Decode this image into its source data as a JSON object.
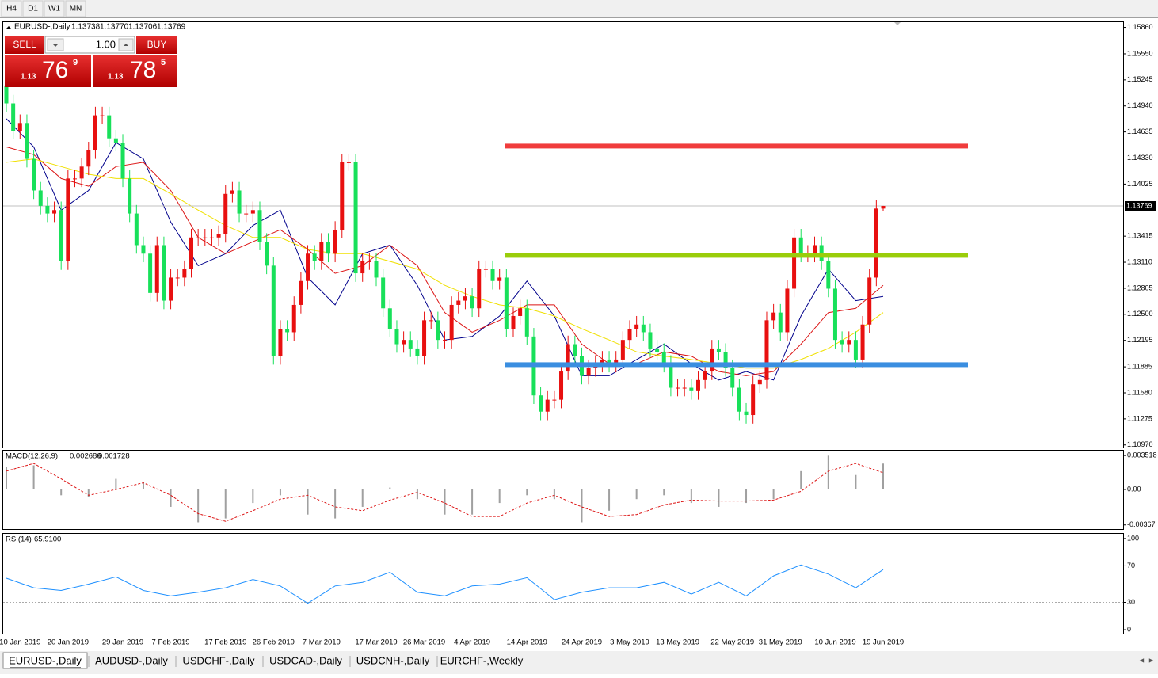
{
  "toolbar": {
    "buttons": [
      "H4",
      "D1",
      "W1",
      "MN"
    ]
  },
  "header": {
    "symbol": "EURUSD-,Daily",
    "ohlc": [
      "1.13738",
      "1.13770",
      "1.13706",
      "1.13769"
    ]
  },
  "trade_panel": {
    "sell": "SELL",
    "buy": "BUY",
    "lot": "1.00",
    "bid": {
      "prefix": "1.13",
      "big": "76",
      "sup": "9"
    },
    "ask": {
      "prefix": "1.13",
      "big": "78",
      "sup": "5"
    }
  },
  "chart_data": [
    {
      "type": "candlestick",
      "categories": [
        null,
        null,
        "10 Jan 2019",
        null,
        null,
        null,
        null,
        null,
        null,
        "20 Jan 2019",
        null,
        null,
        null,
        null,
        null,
        null,
        null,
        "29 Jan 2019",
        null,
        null,
        null,
        null,
        null,
        null,
        "7 Feb 2019",
        null,
        null,
        null,
        null,
        null,
        null,
        null,
        "17 Feb 2019",
        null,
        null,
        null,
        null,
        null,
        null,
        "26 Feb 2019",
        null,
        null,
        null,
        null,
        null,
        null,
        "7 Mar 2019",
        null,
        null,
        null,
        null,
        null,
        null,
        null,
        "17 Mar 2019",
        null,
        null,
        null,
        null,
        null,
        null,
        "26 Mar 2019",
        null,
        null,
        null,
        null,
        null,
        null,
        "4 Apr 2019",
        null,
        null,
        null,
        null,
        null,
        null,
        null,
        "14 Apr 2019",
        null,
        null,
        null,
        null,
        null,
        null,
        null,
        "24 Apr 2019",
        null,
        null,
        null,
        null,
        null,
        null,
        "3 May 2019",
        null,
        null,
        null,
        null,
        null,
        null,
        "13 May 2019",
        null,
        null,
        null,
        null,
        null,
        null,
        null,
        "22 May 2019",
        null,
        null,
        null,
        null,
        null,
        null,
        "31 May 2019",
        null,
        null,
        null,
        null,
        null,
        null,
        null,
        "10 Jun 2019",
        null,
        null,
        null,
        null,
        null,
        null,
        "19 Jun 2019"
      ],
      "open": [
        1.1518,
        1.1497,
        1.1465,
        1.1474,
        1.1432,
        1.1395,
        1.1377,
        1.1368,
        1.1372,
        1.1312,
        1.1409,
        1.1409,
        1.1423,
        1.1442,
        1.1483,
        1.1483,
        1.1456,
        1.1451,
        1.1409,
        1.1368,
        1.1331,
        1.1321,
        1.1275,
        1.1331,
        1.1266,
        1.1293,
        1.1293,
        1.1303,
        1.134,
        1.134,
        1.134,
        1.134,
        1.1344,
        1.1391,
        1.1395,
        1.1368,
        1.1368,
        1.1372,
        1.1335,
        1.1307,
        1.1201,
        1.1233,
        1.1229,
        1.1261,
        1.1289,
        1.1321,
        1.1312,
        1.1335,
        1.1321,
        1.1349,
        1.1428,
        1.1428,
        1.1298,
        1.1312,
        1.1312,
        1.1293,
        1.1257,
        1.1233,
        1.1215,
        1.122,
        1.121,
        1.1201,
        1.1243,
        1.1243,
        1.122,
        1.122,
        1.1261,
        1.1266,
        1.1271,
        1.1257,
        1.1303,
        1.1303,
        1.1289,
        1.1293,
        1.1233,
        1.1248,
        1.1257,
        1.1224,
        1.1155,
        1.1136,
        1.115,
        1.115,
        1.1183,
        1.1215,
        1.1201,
        1.1178,
        1.1187,
        1.1192,
        1.1197,
        1.1192,
        1.1197,
        1.122,
        1.1233,
        1.1238,
        1.1229,
        1.121,
        1.1206,
        1.1192,
        1.1164,
        1.1164,
        1.1164,
        1.116,
        1.1173,
        1.1183,
        1.121,
        1.1206,
        1.1187,
        1.1164,
        1.1136,
        1.1132,
        1.1168,
        1.1173,
        1.1243,
        1.1252,
        1.1229,
        1.128,
        1.134,
        1.1321,
        1.1321,
        1.1331,
        1.1312,
        1.128,
        1.122,
        1.1215,
        1.122,
        1.1197,
        1.1238,
        1.1293,
        1.13738
      ],
      "high": [
        1.1528,
        1.1507,
        1.1484,
        1.1484,
        1.1442,
        1.1405,
        1.1387,
        1.1382,
        1.1382,
        1.1419,
        1.1419,
        1.1433,
        1.1452,
        1.1493,
        1.1493,
        1.1493,
        1.1466,
        1.1461,
        1.1419,
        1.1378,
        1.1341,
        1.1331,
        1.1341,
        1.1341,
        1.1303,
        1.1303,
        1.1313,
        1.135,
        1.135,
        1.135,
        1.135,
        1.1354,
        1.1401,
        1.1405,
        1.1405,
        1.1378,
        1.1382,
        1.1382,
        1.1345,
        1.1317,
        1.1243,
        1.1243,
        1.1271,
        1.1299,
        1.1331,
        1.1331,
        1.1345,
        1.1345,
        1.1359,
        1.1438,
        1.1438,
        1.1438,
        1.1322,
        1.1322,
        1.1322,
        1.1303,
        1.1267,
        1.1243,
        1.123,
        1.123,
        1.122,
        1.1253,
        1.1253,
        1.1253,
        1.123,
        1.1271,
        1.1276,
        1.1281,
        1.1281,
        1.1313,
        1.1313,
        1.1313,
        1.1303,
        1.1303,
        1.1258,
        1.1267,
        1.1267,
        1.1234,
        1.1165,
        1.116,
        1.116,
        1.1193,
        1.1225,
        1.1225,
        1.1211,
        1.1197,
        1.1202,
        1.1207,
        1.1207,
        1.1207,
        1.123,
        1.1243,
        1.1248,
        1.1248,
        1.1239,
        1.122,
        1.1216,
        1.1202,
        1.1174,
        1.1174,
        1.1174,
        1.1183,
        1.1193,
        1.122,
        1.122,
        1.1216,
        1.1197,
        1.1174,
        1.1146,
        1.1178,
        1.1183,
        1.1253,
        1.1262,
        1.1262,
        1.129,
        1.135,
        1.135,
        1.1331,
        1.1341,
        1.1341,
        1.1322,
        1.129,
        1.123,
        1.123,
        1.123,
        1.1248,
        1.1303,
        1.1384,
        1.1377
      ],
      "low": [
        1.1487,
        1.1455,
        1.1455,
        1.1422,
        1.1385,
        1.1367,
        1.1358,
        1.1358,
        1.1302,
        1.1302,
        1.1399,
        1.1399,
        1.1413,
        1.1432,
        1.1473,
        1.1446,
        1.1441,
        1.1399,
        1.1358,
        1.1321,
        1.1311,
        1.1265,
        1.1265,
        1.1256,
        1.1256,
        1.1283,
        1.1283,
        1.1293,
        1.133,
        1.133,
        1.133,
        1.133,
        1.1334,
        1.1381,
        1.1358,
        1.1358,
        1.1358,
        1.1325,
        1.1297,
        1.1191,
        1.1191,
        1.1219,
        1.1219,
        1.1251,
        1.1279,
        1.1302,
        1.1302,
        1.1311,
        1.1311,
        1.1339,
        1.1418,
        1.1288,
        1.1288,
        1.1302,
        1.1283,
        1.1247,
        1.1223,
        1.1205,
        1.1205,
        1.12,
        1.1191,
        1.1191,
        1.1233,
        1.121,
        1.121,
        1.121,
        1.1251,
        1.1256,
        1.1247,
        1.1247,
        1.1293,
        1.1279,
        1.1279,
        1.1223,
        1.1223,
        1.1238,
        1.1214,
        1.1145,
        1.1126,
        1.1126,
        1.114,
        1.114,
        1.1173,
        1.1191,
        1.1168,
        1.1168,
        1.1177,
        1.1182,
        1.1182,
        1.1182,
        1.1187,
        1.121,
        1.1223,
        1.1219,
        1.12,
        1.1196,
        1.1182,
        1.1154,
        1.1154,
        1.1154,
        1.115,
        1.115,
        1.1163,
        1.1173,
        1.1196,
        1.1177,
        1.1154,
        1.1126,
        1.1122,
        1.1122,
        1.1158,
        1.1163,
        1.1233,
        1.1219,
        1.1219,
        1.127,
        1.1311,
        1.1311,
        1.1311,
        1.1302,
        1.127,
        1.121,
        1.1205,
        1.1205,
        1.1187,
        1.1187,
        1.1228,
        1.1283,
        1.13706
      ],
      "close": [
        1.1497,
        1.1465,
        1.1474,
        1.1432,
        1.1395,
        1.1377,
        1.1368,
        1.1372,
        1.1312,
        1.1409,
        1.1409,
        1.1423,
        1.1442,
        1.1483,
        1.1483,
        1.1456,
        1.1451,
        1.1409,
        1.1368,
        1.1331,
        1.1321,
        1.1275,
        1.1331,
        1.1266,
        1.1293,
        1.1293,
        1.1303,
        1.134,
        1.134,
        1.134,
        1.134,
        1.1344,
        1.1391,
        1.1395,
        1.1368,
        1.1368,
        1.1372,
        1.1335,
        1.1307,
        1.1201,
        1.1233,
        1.1229,
        1.1261,
        1.1289,
        1.1321,
        1.1312,
        1.1335,
        1.1321,
        1.1349,
        1.1428,
        1.1428,
        1.1298,
        1.1312,
        1.1312,
        1.1293,
        1.1257,
        1.1233,
        1.1215,
        1.122,
        1.121,
        1.1201,
        1.1243,
        1.1243,
        1.122,
        1.122,
        1.1261,
        1.1266,
        1.1271,
        1.1257,
        1.1303,
        1.1303,
        1.1289,
        1.1293,
        1.1233,
        1.1248,
        1.1257,
        1.1224,
        1.1155,
        1.1136,
        1.115,
        1.115,
        1.1183,
        1.1215,
        1.1201,
        1.1178,
        1.1187,
        1.1192,
        1.1197,
        1.1192,
        1.1197,
        1.122,
        1.1233,
        1.1238,
        1.1229,
        1.121,
        1.1206,
        1.1192,
        1.1164,
        1.1164,
        1.1164,
        1.116,
        1.1173,
        1.1183,
        1.121,
        1.1206,
        1.1187,
        1.1164,
        1.1136,
        1.1132,
        1.1168,
        1.1173,
        1.1243,
        1.1252,
        1.1229,
        1.128,
        1.134,
        1.1321,
        1.1321,
        1.1331,
        1.1312,
        1.128,
        1.122,
        1.1215,
        1.122,
        1.1197,
        1.1238,
        1.1293,
        1.13738,
        1.13769
      ],
      "up_color": "#e81010",
      "down_color": "#18e05a",
      "moving_averages": {
        "x": [
          0,
          4,
          8,
          12,
          16,
          20,
          24,
          28,
          32,
          36,
          40,
          44,
          48,
          52,
          56,
          60,
          64,
          68,
          72,
          76,
          80,
          84,
          88,
          92,
          96,
          100,
          104,
          108,
          112,
          116,
          120,
          124,
          128
        ],
        "series": [
          {
            "color": "#00008b",
            "values": [
              1.1479,
              1.1446,
              1.1372,
              1.1395,
              1.1451,
              1.1432,
              1.1358,
              1.1307,
              1.1321,
              1.1354,
              1.1372,
              1.1293,
              1.1261,
              1.1321,
              1.1331,
              1.1284,
              1.122,
              1.1224,
              1.1248,
              1.1289,
              1.1248,
              1.1178,
              1.1178,
              1.1197,
              1.1215,
              1.1192,
              1.1173,
              1.1183,
              1.1173,
              1.1248,
              1.1303,
              1.1266,
              1.1271
            ]
          },
          {
            "color": "#dc1414",
            "values": [
              1.1446,
              1.1437,
              1.1409,
              1.14,
              1.1423,
              1.1428,
              1.1395,
              1.134,
              1.1321,
              1.1335,
              1.1349,
              1.1326,
              1.1298,
              1.1307,
              1.1331,
              1.1307,
              1.1252,
              1.1229,
              1.1243,
              1.1261,
              1.1261,
              1.1215,
              1.1192,
              1.1192,
              1.1206,
              1.1201,
              1.1183,
              1.1178,
              1.1183,
              1.1215,
              1.1252,
              1.1257,
              1.1284
            ]
          },
          {
            "color": "#f0e000",
            "values": [
              1.1428,
              1.1432,
              1.1423,
              1.1414,
              1.1409,
              1.1409,
              1.1391,
              1.1372,
              1.1354,
              1.134,
              1.134,
              1.1326,
              1.1321,
              1.1321,
              1.1312,
              1.1303,
              1.1284,
              1.1271,
              1.1261,
              1.1257,
              1.1248,
              1.1233,
              1.122,
              1.1206,
              1.1201,
              1.1197,
              1.1192,
              1.1187,
              1.1187,
              1.1197,
              1.121,
              1.1229,
              1.1252
            ]
          }
        ]
      },
      "levels": [
        {
          "value": 1.1447,
          "color": "#f03c3c"
        },
        {
          "value": 1.1319,
          "color": "#9acd0a"
        },
        {
          "value": 1.1191,
          "color": "#3a8ee0"
        }
      ],
      "current_price": {
        "value": 1.13769,
        "label": "1.13769"
      },
      "ylim": [
        1.1094,
        1.1593
      ],
      "yticks": [
        {
          "value": 1.1586,
          "label": "1.15860"
        },
        {
          "value": 1.1555,
          "label": "1.15550"
        },
        1.15245,
        {
          "value": 1.1494,
          "label": "1.14940"
        },
        1.14635,
        {
          "value": 1.1433,
          "label": "1.14330"
        },
        1.14025,
        1.13415,
        {
          "value": 1.1311,
          "label": "1.13110"
        },
        1.12805,
        {
          "value": 1.125,
          "label": "1.12500"
        },
        1.12195,
        1.11885,
        {
          "value": 1.1158,
          "label": "1.11580"
        },
        1.11275,
        {
          "value": 1.1097,
          "label": "1.10970"
        }
      ]
    },
    {
      "type": "macd",
      "title": "MACD(12,26,9)",
      "x": [
        0,
        4,
        8,
        12,
        16,
        20,
        24,
        28,
        32,
        36,
        40,
        44,
        48,
        52,
        56,
        60,
        64,
        68,
        72,
        76,
        80,
        84,
        88,
        92,
        96,
        100,
        104,
        108,
        112,
        116,
        120,
        124,
        128
      ],
      "series": [
        {
          "color": "#a0a0a0",
          "values": [
            0.0023,
            0.0025,
            -0.0006,
            -0.0008,
            0.0011,
            0.0008,
            -0.0018,
            -0.0034,
            -0.003,
            -0.0014,
            -0.0006,
            -0.0026,
            -0.003,
            -0.0018,
            0.0002,
            -0.001,
            -0.0026,
            -0.0026,
            -0.0014,
            -0.0006,
            -0.001,
            -0.0034,
            -0.0022,
            -0.001,
            -0.0006,
            -0.0014,
            -0.0018,
            -0.0014,
            -0.001,
            0.0019,
            0.0035,
            0.0015,
            0.002686
          ]
        },
        {
          "color": "#dc1414",
          "values": [
            0.0019,
            0.0027,
            0.0011,
            -0.0006,
            0,
            0.0007,
            -0.0006,
            -0.0025,
            -0.0033,
            -0.0022,
            -0.001,
            -0.0006,
            -0.0018,
            -0.0022,
            -0.0011,
            -0.0003,
            -0.0014,
            -0.0028,
            -0.0028,
            -0.0014,
            -0.0006,
            -0.0018,
            -0.0028,
            -0.0026,
            -0.0016,
            -0.0011,
            -0.0012,
            -0.0012,
            -0.0011,
            -0.0002,
            0.0019,
            0.0027,
            0.001728
          ]
        }
      ],
      "ylim": [
        -0.0041,
        0.0041
      ],
      "yticks": [
        0.003518,
        {
          "value": 0,
          "label": "0.00"
        },
        -0.00367
      ]
    },
    {
      "type": "line",
      "title": "RSI(14)",
      "value_label": "65.9100",
      "x": [
        0,
        4,
        8,
        12,
        16,
        20,
        24,
        28,
        32,
        36,
        40,
        44,
        48,
        52,
        56,
        60,
        64,
        68,
        72,
        76,
        80,
        84,
        88,
        92,
        96,
        100,
        104,
        108,
        112,
        116,
        120,
        124,
        128
      ],
      "values": [
        56.5,
        46,
        43,
        50,
        58,
        43,
        37,
        41,
        46,
        55,
        48,
        29,
        48,
        52,
        63,
        41,
        37,
        48,
        50,
        57,
        33,
        41,
        46,
        46,
        52,
        39,
        52,
        37,
        59,
        71,
        61,
        46,
        65.91
      ],
      "color": "#1e90ff",
      "levels": [
        70,
        30
      ],
      "ylim": [
        -4.3,
        106
      ],
      "yticks": [
        100,
        70,
        30,
        0
      ]
    }
  ],
  "tabs": [
    "EURUSD-,Daily",
    "AUDUSD-,Daily",
    "USDCHF-,Daily",
    "USDCAD-,Daily",
    "USDCNH-,Daily",
    "EURCHF-,Weekly"
  ]
}
